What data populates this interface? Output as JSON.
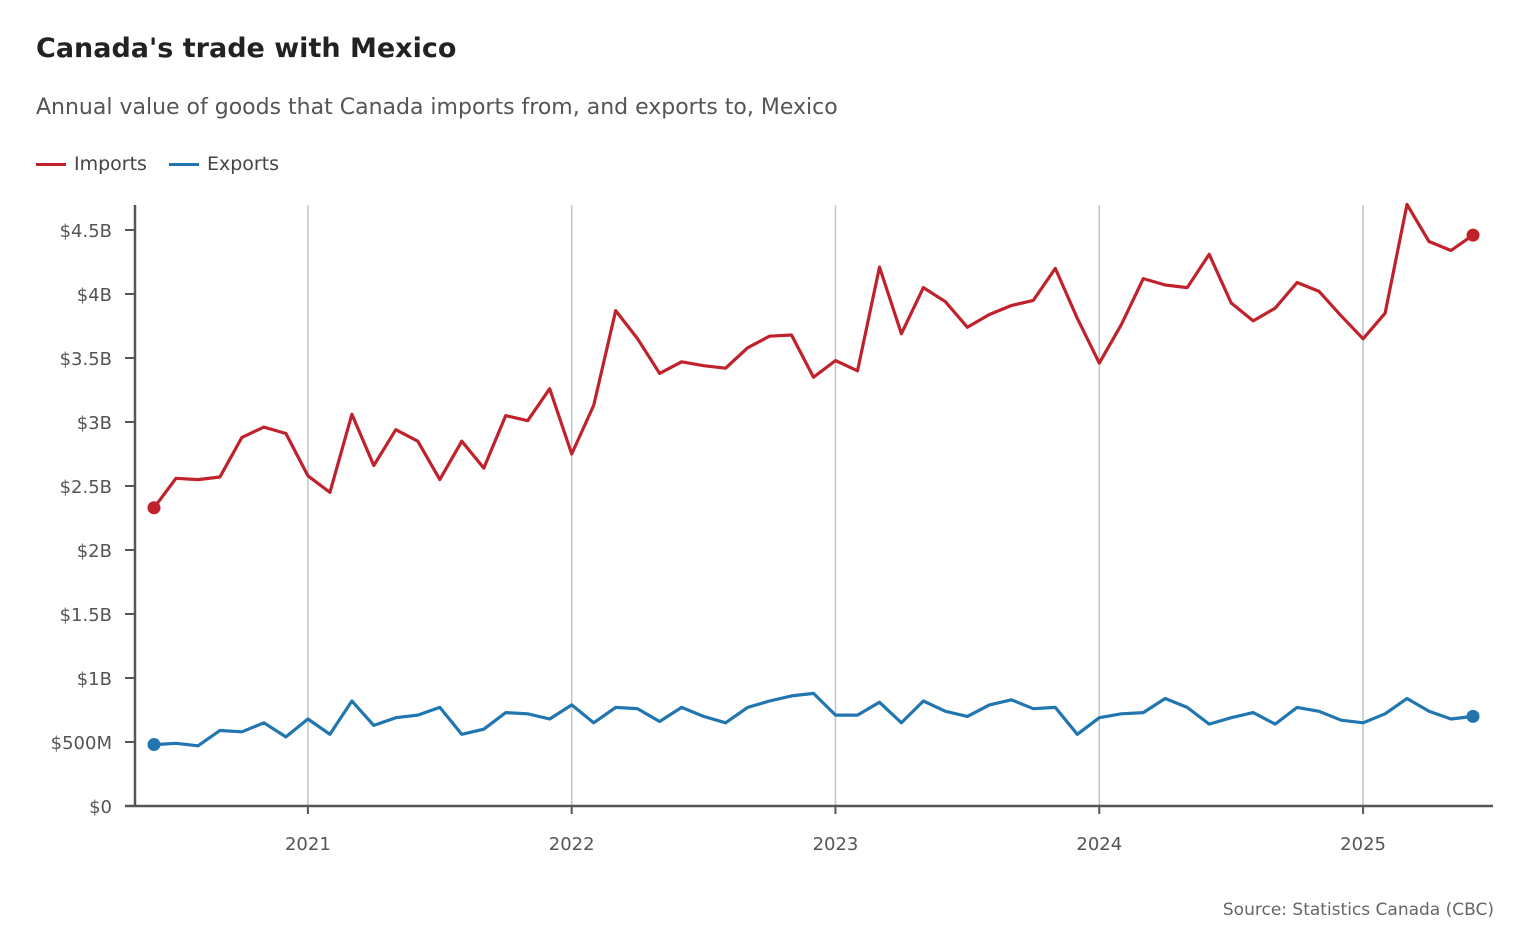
{
  "header": {
    "title": "Canada's trade with Mexico",
    "subtitle": "Annual value of goods that Canada imports from, and exports to, Mexico"
  },
  "legend": [
    {
      "label": "Imports",
      "color": "#c0222c"
    },
    {
      "label": "Exports",
      "color": "#2176b0"
    }
  ],
  "footer": {
    "source": "Source: Statistics Canada (CBC)"
  },
  "colors": {
    "imports": "#c0222c",
    "exports": "#2176b0",
    "axis": "#555555",
    "gridline": "#bcc6cc"
  },
  "chart_data": {
    "type": "line",
    "title": "Canada's trade with Mexico",
    "subtitle": "Annual value of goods that Canada imports from, and exports to, Mexico",
    "x_start": "2020-06",
    "x_end": "2025-06",
    "x_ticks": [
      "2021",
      "2022",
      "2023",
      "2024",
      "2025"
    ],
    "y_ticks": [
      {
        "value": 0,
        "label": "$0"
      },
      {
        "value": 0.5,
        "label": "$500M"
      },
      {
        "value": 1,
        "label": "$1B"
      },
      {
        "value": 1.5,
        "label": "$1.5B"
      },
      {
        "value": 2,
        "label": "$2B"
      },
      {
        "value": 2.5,
        "label": "$2.5B"
      },
      {
        "value": 3,
        "label": "$3B"
      },
      {
        "value": 3.5,
        "label": "$3.5B"
      },
      {
        "value": 4,
        "label": "$4B"
      },
      {
        "value": 4.5,
        "label": "$4.5B"
      }
    ],
    "ylim": [
      0,
      4.7
    ],
    "y_unit": "billions of dollars",
    "grid": "vertical at year boundaries",
    "legend_position": "top-left",
    "series": [
      {
        "name": "Imports",
        "color": "#c0222c",
        "end_markers": true,
        "values": [
          2.33,
          2.56,
          2.55,
          2.57,
          2.88,
          2.96,
          2.91,
          2.58,
          2.45,
          3.06,
          2.66,
          2.94,
          2.85,
          2.55,
          2.85,
          2.64,
          3.05,
          3.01,
          3.26,
          2.75,
          3.13,
          3.87,
          3.65,
          3.38,
          3.47,
          3.44,
          3.42,
          3.58,
          3.67,
          3.68,
          3.35,
          3.48,
          3.4,
          4.21,
          3.69,
          4.05,
          3.94,
          3.74,
          3.84,
          3.91,
          3.95,
          4.2,
          3.81,
          3.46,
          3.76,
          4.12,
          4.07,
          4.05,
          4.31,
          3.93,
          3.79,
          3.89,
          4.09,
          4.02,
          3.83,
          3.65,
          3.85,
          4.7,
          4.41,
          4.34,
          4.46
        ]
      },
      {
        "name": "Exports",
        "color": "#2176b0",
        "end_markers": true,
        "values": [
          0.48,
          0.49,
          0.47,
          0.59,
          0.58,
          0.65,
          0.54,
          0.68,
          0.56,
          0.82,
          0.63,
          0.69,
          0.71,
          0.77,
          0.56,
          0.6,
          0.73,
          0.72,
          0.68,
          0.79,
          0.65,
          0.77,
          0.76,
          0.66,
          0.77,
          0.7,
          0.65,
          0.77,
          0.82,
          0.86,
          0.88,
          0.71,
          0.71,
          0.81,
          0.65,
          0.82,
          0.74,
          0.7,
          0.79,
          0.83,
          0.76,
          0.77,
          0.56,
          0.69,
          0.72,
          0.73,
          0.84,
          0.77,
          0.64,
          0.69,
          0.73,
          0.64,
          0.77,
          0.74,
          0.67,
          0.65,
          0.72,
          0.84,
          0.74,
          0.68,
          0.7
        ]
      }
    ]
  }
}
